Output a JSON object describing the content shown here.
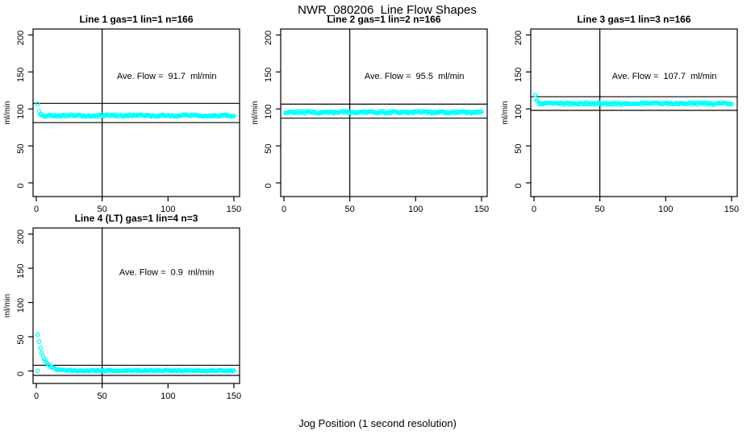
{
  "header": {
    "title": "NWR_080206  Line Flow Shapes"
  },
  "footer": {
    "xlabel": "Jog Position (1 second resolution)"
  },
  "style": {
    "point_color": "#00FFFF",
    "line_color": "#000000",
    "background": "#FFFFFF",
    "marker": "open-circle"
  },
  "chart_data": [
    {
      "type": "scatter",
      "title": "Line 1 gas=1 lin=1 n=166",
      "annotation": "Ave. Flow =  91.7  ml/min",
      "ave_flow_ml_min": 91.7,
      "n": 166,
      "ylabel": "ml/min",
      "xticks": [
        0,
        50,
        100,
        150
      ],
      "yticks": [
        0,
        50,
        100,
        150,
        200
      ],
      "xlim": [
        -2.5,
        156.5
      ],
      "ylim": [
        -18.5,
        208.5
      ],
      "grid": false,
      "legend": false,
      "vline_x": 50,
      "hlines": [
        107.5,
        81.5
      ],
      "series": {
        "x_start": 1,
        "x_end": 150,
        "x_step": 1,
        "flat_y": 91.0,
        "spike_amplitude": 15,
        "spike_tau": 0.9,
        "noise_halfwidth": 1.3,
        "extra_points": []
      }
    },
    {
      "type": "scatter",
      "title": "Line 2 gas=1 lin=2 n=166",
      "annotation": "Ave. Flow =  95.5  ml/min",
      "ave_flow_ml_min": 95.5,
      "n": 166,
      "ylabel": "ml/min",
      "xticks": [
        0,
        50,
        100,
        150
      ],
      "yticks": [
        0,
        50,
        100,
        150,
        200
      ],
      "xlim": [
        -2.5,
        156.5
      ],
      "ylim": [
        -18.5,
        208.5
      ],
      "grid": false,
      "legend": false,
      "vline_x": 50,
      "hlines": [
        106.5,
        87.5
      ],
      "series": {
        "x_start": 1,
        "x_end": 150,
        "x_step": 1,
        "flat_y": 95.5,
        "spike_amplitude": 0,
        "spike_tau": 1,
        "noise_halfwidth": 1.4,
        "extra_points": []
      }
    },
    {
      "type": "scatter",
      "title": "Line 3 gas=1 lin=3 n=166",
      "annotation": "Ave. Flow =  107.7  ml/min",
      "ave_flow_ml_min": 107.7,
      "n": 166,
      "ylabel": "ml/min",
      "xticks": [
        0,
        50,
        100,
        150
      ],
      "yticks": [
        0,
        50,
        100,
        150,
        200
      ],
      "xlim": [
        -2.5,
        156.5
      ],
      "ylim": [
        -18.5,
        208.5
      ],
      "grid": false,
      "legend": false,
      "vline_x": 50,
      "hlines": [
        116.5,
        98.0
      ],
      "series": {
        "x_start": 1,
        "x_end": 150,
        "x_step": 1,
        "flat_y": 107.3,
        "spike_amplitude": 12,
        "spike_tau": 1.1,
        "noise_halfwidth": 1.3,
        "extra_points": []
      }
    },
    {
      "type": "scatter",
      "title": "Line 4 (LT) gas=1 lin=4 n=3",
      "annotation": "Ave. Flow =  0.9  ml/min",
      "ave_flow_ml_min": 0.9,
      "n": 3,
      "ylabel": "ml/min",
      "xticks": [
        0,
        50,
        100,
        150
      ],
      "yticks": [
        0,
        50,
        100,
        150,
        200
      ],
      "xlim": [
        -2.5,
        156.5
      ],
      "ylim": [
        -18.5,
        208.5
      ],
      "grid": false,
      "legend": false,
      "vline_x": 50,
      "hlines": [
        8.3,
        -6.5
      ],
      "series": {
        "x_start": 1,
        "x_end": 150,
        "x_step": 1,
        "flat_y": 0.5,
        "spike_amplitude": 52,
        "spike_tau": 4.5,
        "noise_halfwidth": 0.8,
        "extra_points": [
          [
            1,
            0
          ]
        ]
      }
    }
  ]
}
